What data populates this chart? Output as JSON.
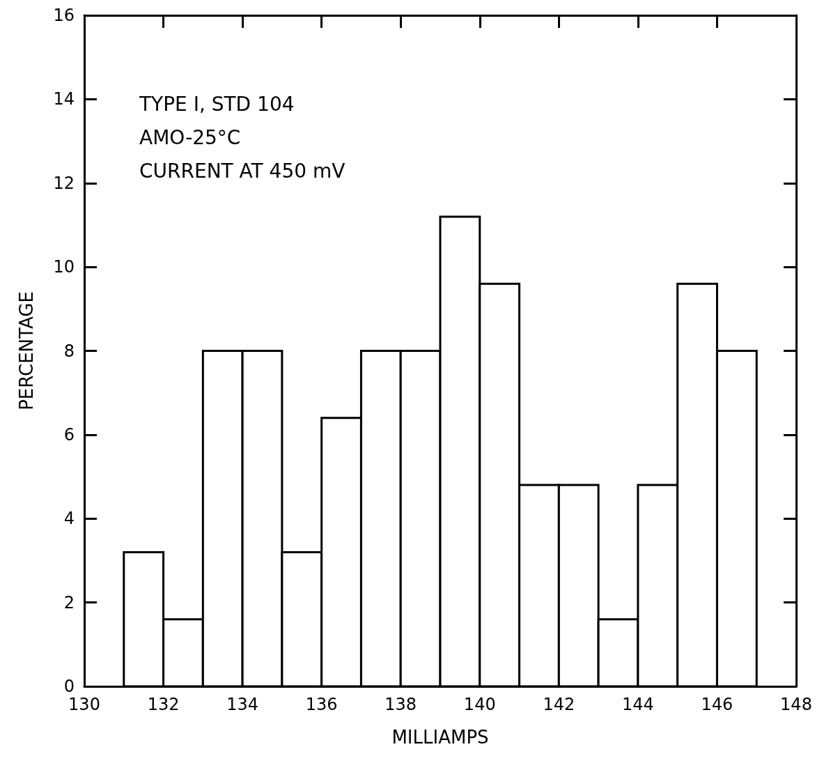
{
  "chart_data": {
    "type": "histogram",
    "xlabel": "MILLIAMPS",
    "ylabel": "PERCENTAGE",
    "annotations": [
      "TYPE I, STD 104",
      "AMO-25°C",
      "CURRENT AT 450 mV"
    ],
    "bins": [
      131,
      132,
      133,
      134,
      135,
      136,
      137,
      138,
      139,
      140,
      141,
      142,
      143,
      144,
      145,
      146,
      147
    ],
    "values": [
      3.2,
      1.6,
      8,
      8,
      3.2,
      6.4,
      8,
      8,
      11.2,
      9.6,
      4.8,
      4.8,
      1.6,
      4.8,
      9.6,
      8
    ],
    "color": "#ffffff",
    "xlim": [
      130,
      148
    ],
    "xticks": [
      130,
      132,
      134,
      136,
      138,
      140,
      142,
      144,
      146,
      148
    ],
    "ylim": [
      0,
      16
    ],
    "yticks": [
      0,
      2,
      4,
      6,
      8,
      10,
      12,
      14,
      16
    ],
    "grid": false
  }
}
